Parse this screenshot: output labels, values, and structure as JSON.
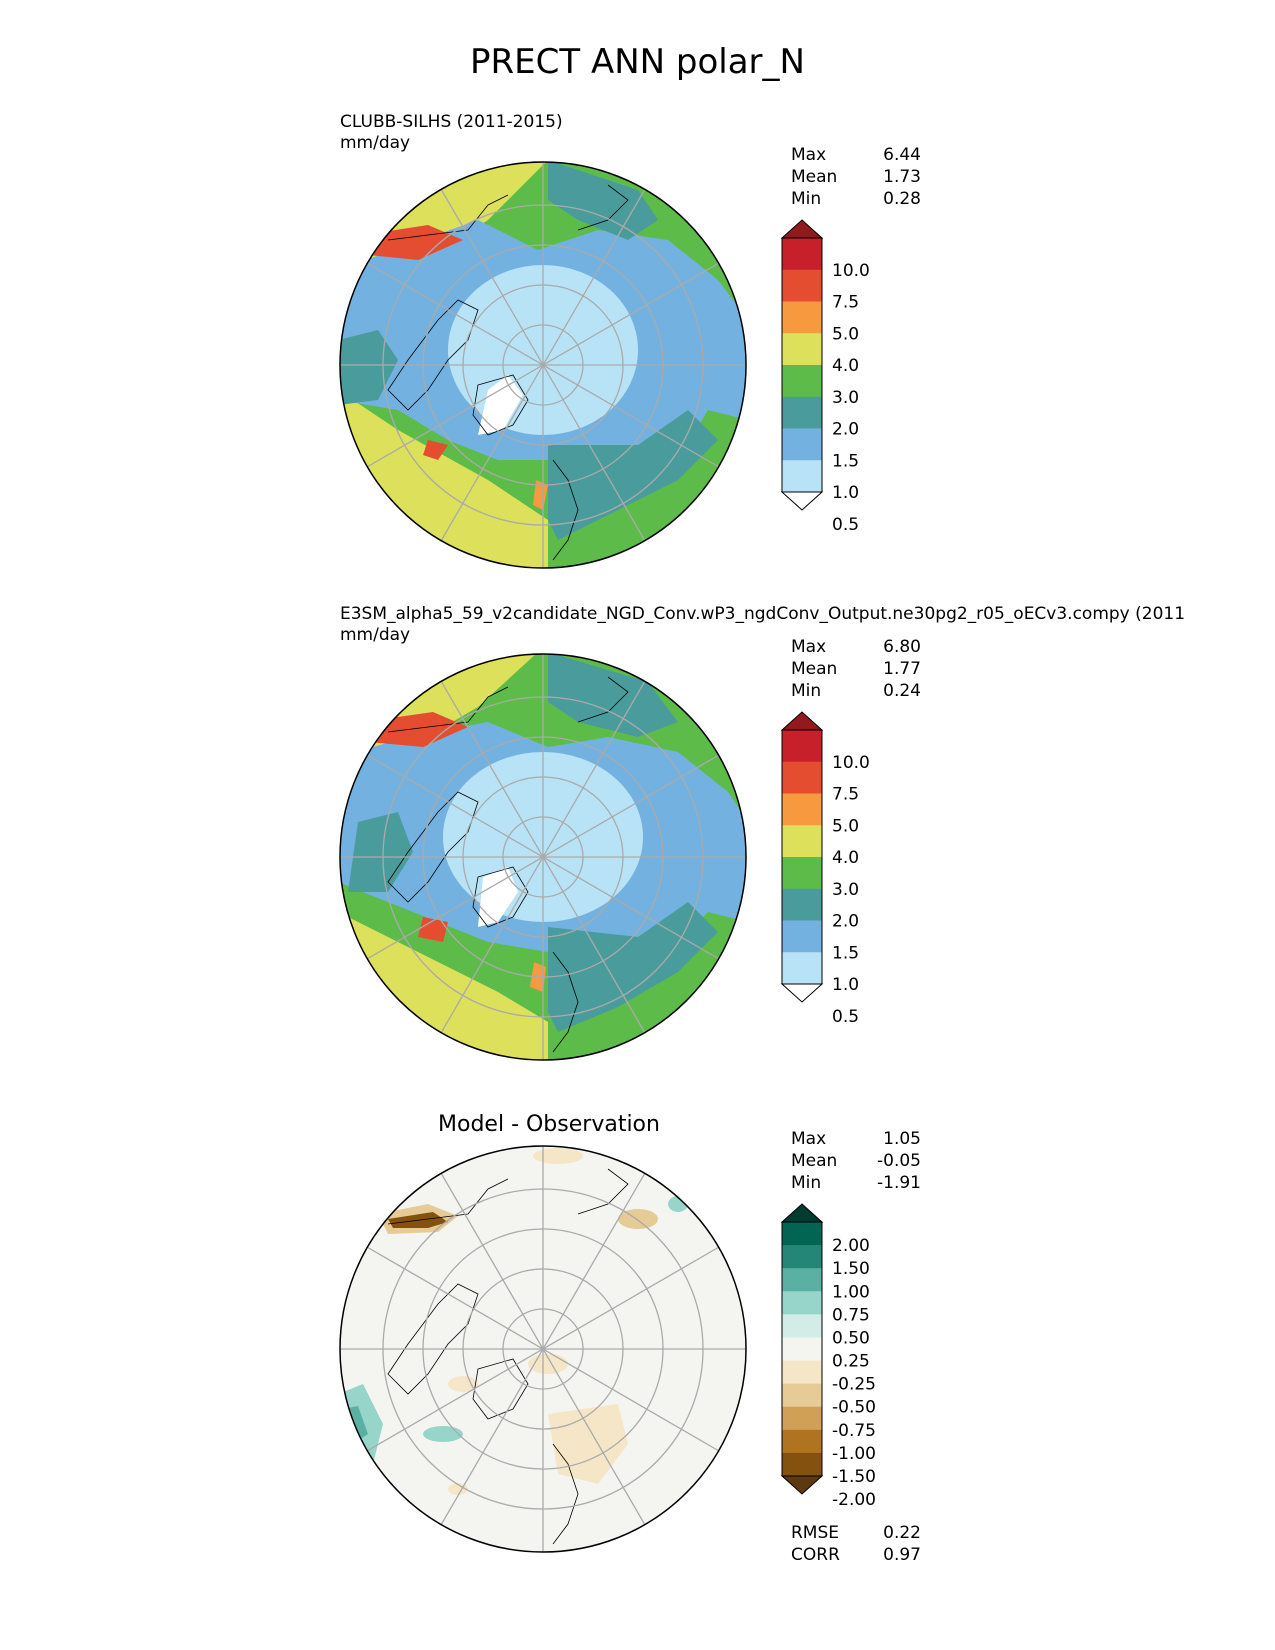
{
  "figure": {
    "title": "PRECT ANN polar_N"
  },
  "panels": [
    {
      "title_line1": "CLUBB-SILHS (2011-2015)",
      "title_line2": "mm/day",
      "stats": [
        {
          "label": "Max",
          "value": "6.44"
        },
        {
          "label": "Mean",
          "value": "1.73"
        },
        {
          "label": "Min",
          "value": "0.28"
        }
      ],
      "colorbar": {
        "ticks": [
          "10.0",
          "7.5",
          "5.0",
          "4.0",
          "3.0",
          "2.0",
          "1.5",
          "1.0",
          "0.5"
        ],
        "colors": [
          "#ffffff",
          "#b8e3f7",
          "#73b2e0",
          "#4a9c9c",
          "#5dbb4a",
          "#dde05a",
          "#f6993f",
          "#e54d30",
          "#c8202a",
          "#901a1e"
        ]
      }
    },
    {
      "title_line1": "E3SM_alpha5_59_v2candidate_NGD_Conv.wP3_ngdConv_Output.ne30pg2_r05_oECv3.compy (2011",
      "title_line2": "mm/day",
      "stats": [
        {
          "label": "Max",
          "value": "6.80"
        },
        {
          "label": "Mean",
          "value": "1.77"
        },
        {
          "label": "Min",
          "value": "0.24"
        }
      ],
      "colorbar": {
        "ticks": [
          "10.0",
          "7.5",
          "5.0",
          "4.0",
          "3.0",
          "2.0",
          "1.5",
          "1.0",
          "0.5"
        ],
        "colors": [
          "#ffffff",
          "#b8e3f7",
          "#73b2e0",
          "#4a9c9c",
          "#5dbb4a",
          "#dde05a",
          "#f6993f",
          "#e54d30",
          "#c8202a",
          "#901a1e"
        ]
      }
    },
    {
      "title_center": "Model - Observation",
      "stats": [
        {
          "label": "Max",
          "value": "1.05"
        },
        {
          "label": "Mean",
          "value": "-0.05"
        },
        {
          "label": "Min",
          "value": "-1.91"
        }
      ],
      "colorbar": {
        "ticks": [
          "2.00",
          "1.50",
          "1.00",
          "0.75",
          "0.50",
          "0.25",
          "-0.25",
          "-0.50",
          "-0.75",
          "-1.00",
          "-1.50",
          "-2.00"
        ],
        "colors": [
          "#5c3a0e",
          "#85510f",
          "#b07420",
          "#cfa055",
          "#e6cb97",
          "#f5e6c8",
          "#f4f4f1",
          "#d2ece7",
          "#97d5cb",
          "#5ab1a3",
          "#248677",
          "#026553",
          "#003b2f"
        ]
      },
      "metrics": [
        {
          "label": "RMSE",
          "value": "0.22"
        },
        {
          "label": "CORR",
          "value": "0.97"
        }
      ]
    }
  ],
  "map_palette": {
    "ocean_light": "#b8e3f7",
    "blue": "#73b2e0",
    "teal": "#4a9c9c",
    "green": "#5dbb4a",
    "yellow": "#dde05a",
    "orange": "#f6993f",
    "red": "#e54d30",
    "diff_bg": "#f4f4f1",
    "diff_tan": "#f5e6c8",
    "diff_brown": "#85510f",
    "diff_teal": "#97d5cb"
  }
}
